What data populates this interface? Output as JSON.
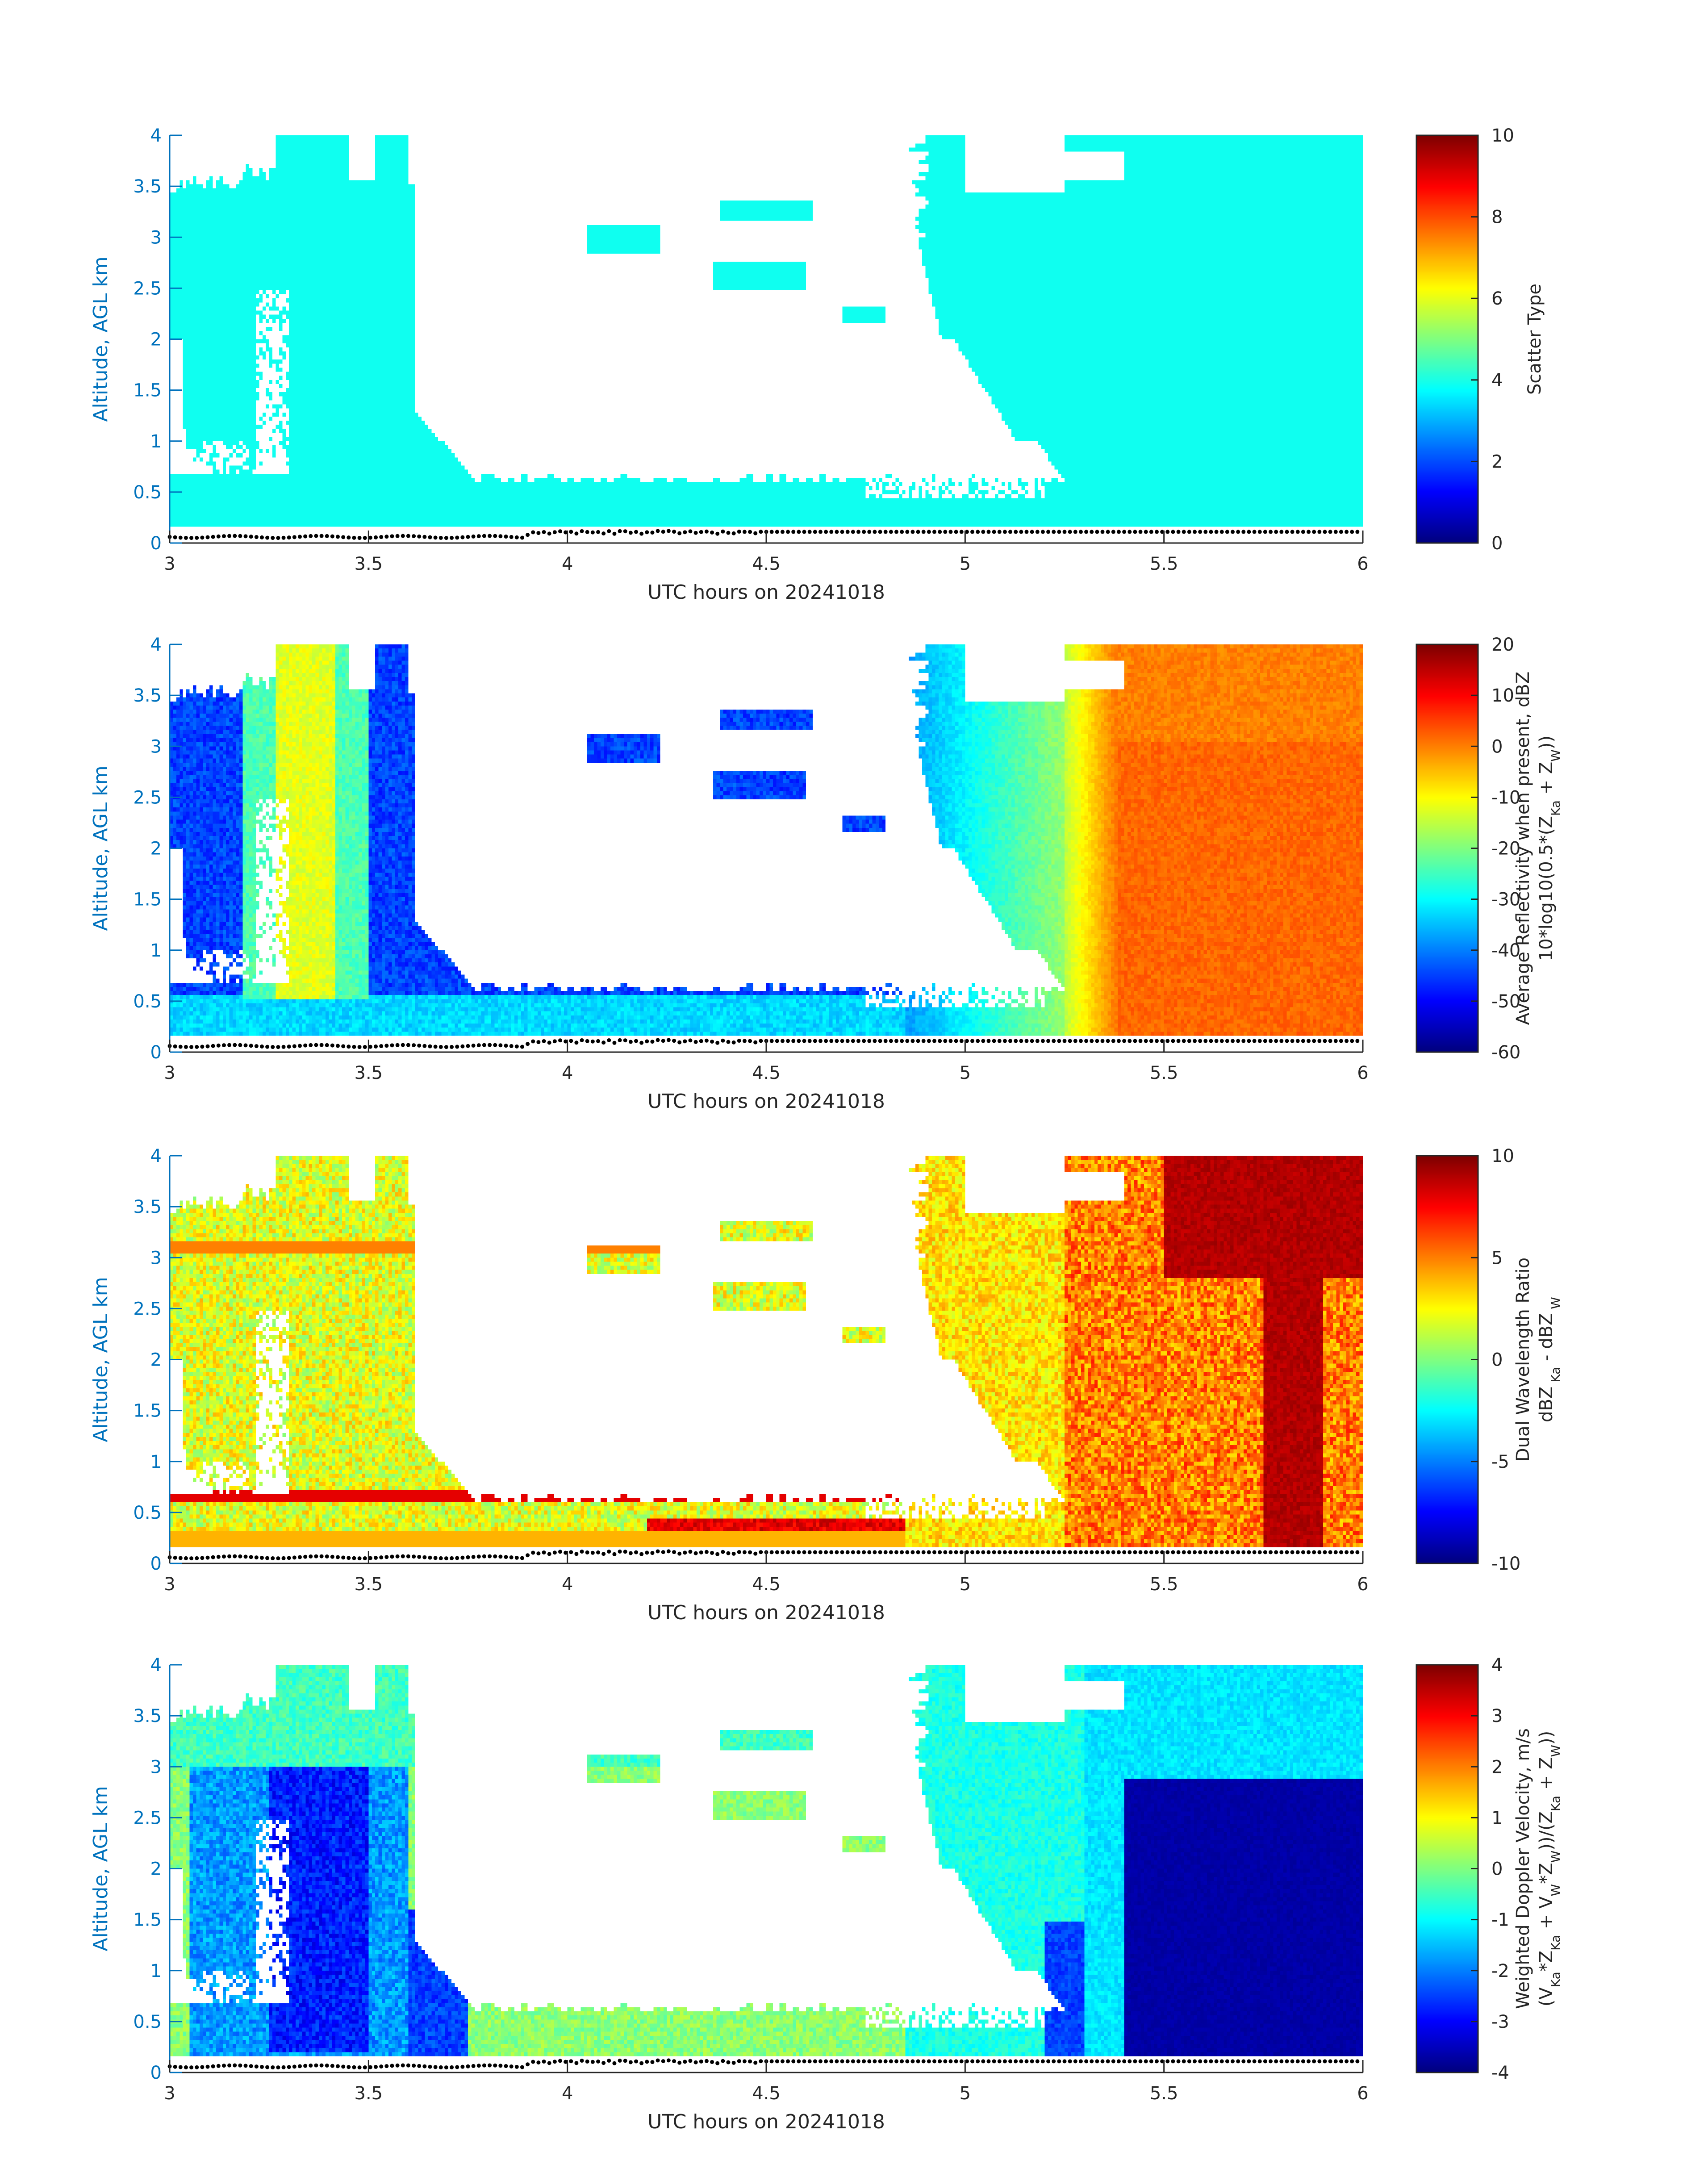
{
  "colors": {
    "axis_blue": "#0072BD",
    "axis_dark": "#262626",
    "text_dark": "#262626",
    "ground_dots": "#000000",
    "background": "#ffffff"
  },
  "chart_data": [
    {
      "type": "heatmap",
      "name": "scatter-type",
      "title": "",
      "xlabel": "UTC hours on 20241018",
      "ylabel": "Altitude, AGL km",
      "xlim": [
        3,
        6
      ],
      "ylim": [
        0,
        4
      ],
      "xticks": [
        "3",
        "3.5",
        "4",
        "4.5",
        "5",
        "5.5",
        "6"
      ],
      "yticks": [
        "0",
        "0.5",
        "1",
        "1.5",
        "2",
        "2.5",
        "3",
        "3.5",
        "4"
      ],
      "colorbar": {
        "label_lines": [
          "Scatter Type"
        ],
        "range": [
          0,
          10
        ],
        "ticks": [
          "0",
          "2",
          "4",
          "6",
          "8",
          "10"
        ],
        "colormap": "jet"
      },
      "field": "scatter_type",
      "fill_value": 3.9
    },
    {
      "type": "heatmap",
      "name": "average-reflectivity",
      "title": "",
      "xlabel": "UTC hours on 20241018",
      "ylabel": "Altitude, AGL km",
      "xlim": [
        3,
        6
      ],
      "ylim": [
        0,
        4
      ],
      "xticks": [
        "3",
        "3.5",
        "4",
        "4.5",
        "5",
        "5.5",
        "6"
      ],
      "yticks": [
        "0",
        "0.5",
        "1",
        "1.5",
        "2",
        "2.5",
        "3",
        "3.5",
        "4"
      ],
      "colorbar": {
        "label_lines": [
          "Average Reflectivity when present, dBZ",
          "10*log10(0.5*(Zₖₐ + Zᵂ))"
        ],
        "label_line1": "Average Reflectivity when present, dBZ",
        "label_line2_parts": [
          "10*log10(0.5*(Z",
          "Ka",
          " + Z",
          "W",
          "))"
        ],
        "range": [
          -60,
          20
        ],
        "ticks": [
          "-60",
          "-50",
          "-40",
          "-30",
          "-20",
          "-10",
          "0",
          "10",
          "20"
        ],
        "colormap": "jet"
      },
      "field": "reflectivity_dbz"
    },
    {
      "type": "heatmap",
      "name": "dual-wavelength-ratio",
      "title": "",
      "xlabel": "UTC hours on 20241018",
      "ylabel": "Altitude, AGL km",
      "xlim": [
        3,
        6
      ],
      "ylim": [
        0,
        4
      ],
      "xticks": [
        "3",
        "3.5",
        "4",
        "4.5",
        "5",
        "5.5",
        "6"
      ],
      "yticks": [
        "0",
        "0.5",
        "1",
        "1.5",
        "2",
        "2.5",
        "3",
        "3.5",
        "4"
      ],
      "colorbar": {
        "label_line1": "Dual Wavelength Ratio",
        "label_line2_parts": [
          "dBZ",
          " Ka",
          " - dBZ",
          " W"
        ],
        "range": [
          -10,
          10
        ],
        "ticks": [
          "-10",
          "-5",
          "0",
          "5",
          "10"
        ],
        "colormap": "jet"
      },
      "field": "dwr_db"
    },
    {
      "type": "heatmap",
      "name": "weighted-doppler-velocity",
      "title": "",
      "xlabel": "UTC hours on 20241018",
      "ylabel": "Altitude, AGL km",
      "xlim": [
        3,
        6
      ],
      "ylim": [
        0,
        4
      ],
      "xticks": [
        "3",
        "3.5",
        "4",
        "4.5",
        "5",
        "5.5",
        "6"
      ],
      "yticks": [
        "0",
        "0.5",
        "1",
        "1.5",
        "2",
        "2.5",
        "3",
        "3.5",
        "4"
      ],
      "colorbar": {
        "label_line1": "Weighted Doppler Velocity, m/s",
        "label_line2_parts": [
          "(V",
          "Ka",
          "*Z",
          "Ka",
          " + V",
          "W",
          "*Z",
          "W",
          "))/(Z",
          "Ka",
          " + Z",
          "W",
          "))"
        ],
        "range": [
          -4,
          4
        ],
        "ticks": [
          "-4",
          "-3",
          "-2",
          "-1",
          "0",
          "1",
          "2",
          "3",
          "4"
        ],
        "colormap": "jet"
      },
      "field": "doppler_ms"
    }
  ],
  "echo_regions": [
    {
      "desc": "left column of cloud",
      "x_range": [
        3.0,
        3.6
      ],
      "y_top_profile": [
        [
          3.0,
          3.5
        ],
        [
          3.2,
          3.6
        ],
        [
          3.3,
          4.0
        ],
        [
          3.45,
          3.7
        ],
        [
          3.55,
          4.0
        ],
        [
          3.6,
          3.4
        ]
      ]
    },
    {
      "desc": "low layer",
      "x_range": [
        3.0,
        5.3
      ],
      "y_top": 0.6
    },
    {
      "desc": "ground clutter line",
      "altitude_km": 0.08,
      "x_range": [
        3.0,
        6.0
      ]
    },
    {
      "desc": "right cloud mass",
      "x_range": [
        4.9,
        6.0
      ],
      "y_top": 4.0
    },
    {
      "desc": "precipitation region",
      "x_range": [
        5.38,
        6.0
      ],
      "y_range": [
        0.2,
        4.0
      ],
      "reflectivity_dbz": 2,
      "doppler_ms": -3.7,
      "dwr_db": 8
    }
  ]
}
